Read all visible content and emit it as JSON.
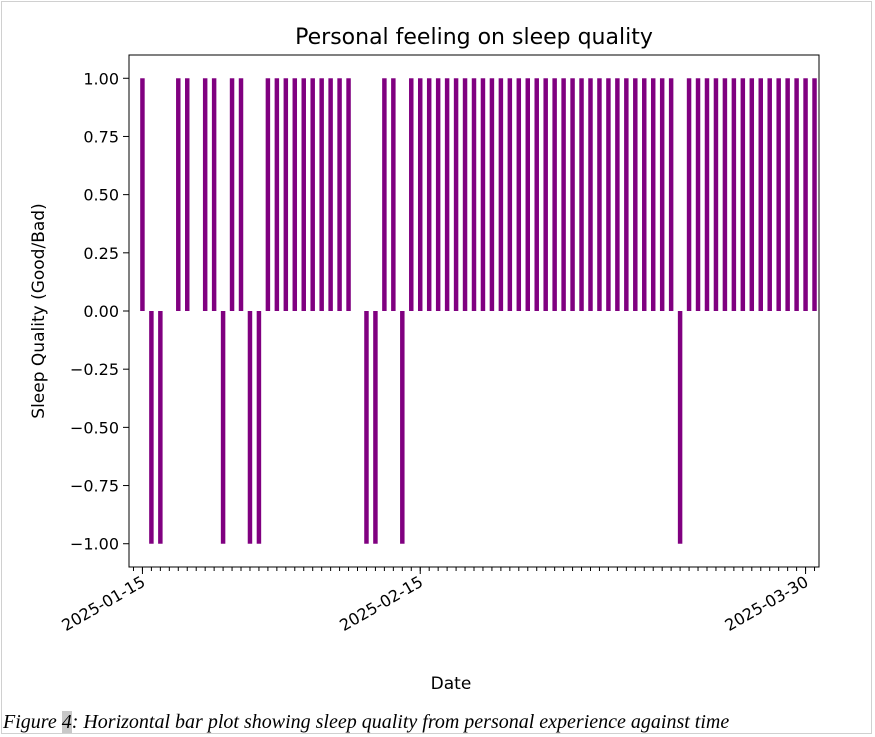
{
  "caption": {
    "prefix": "Figure ",
    "number": "4",
    "text": ": Horizontal bar plot showing sleep quality from personal experience against time"
  },
  "chart_data": {
    "type": "bar",
    "title": "Personal feeling on sleep quality",
    "xlabel": "Date",
    "ylabel": "Sleep Quality (Good/Bad)",
    "bar_color": "#800080",
    "grid": false,
    "legend": "none",
    "x_range": [
      "2025-01-14",
      "2025-03-31"
    ],
    "ylim": [
      -1.1,
      1.1
    ],
    "y_ticks": [
      {
        "value": 1.0,
        "label": "1.00"
      },
      {
        "value": 0.75,
        "label": "0.75"
      },
      {
        "value": 0.5,
        "label": "0.50"
      },
      {
        "value": 0.25,
        "label": "0.25"
      },
      {
        "value": 0.0,
        "label": "0.00"
      },
      {
        "value": -0.25,
        "label": "−0.25"
      },
      {
        "value": -0.5,
        "label": "−0.50"
      },
      {
        "value": -0.75,
        "label": "−0.75"
      },
      {
        "value": -1.0,
        "label": "−1.00"
      }
    ],
    "x_tick_labels": [
      {
        "date": "2025-01-15",
        "label": "2025-01-15"
      },
      {
        "date": "2025-02-15",
        "label": "2025-02-15"
      },
      {
        "date": "2025-03-30",
        "label": "2025-03-30"
      }
    ],
    "x_minor_ticks": "daily",
    "points": [
      {
        "date": "2025-01-15",
        "value": 1
      },
      {
        "date": "2025-01-16",
        "value": -1
      },
      {
        "date": "2025-01-17",
        "value": -1
      },
      {
        "date": "2025-01-19",
        "value": 1
      },
      {
        "date": "2025-01-20",
        "value": 1
      },
      {
        "date": "2025-01-22",
        "value": 1
      },
      {
        "date": "2025-01-23",
        "value": 1
      },
      {
        "date": "2025-01-24",
        "value": -1
      },
      {
        "date": "2025-01-25",
        "value": 1
      },
      {
        "date": "2025-01-26",
        "value": 1
      },
      {
        "date": "2025-01-27",
        "value": -1
      },
      {
        "date": "2025-01-28",
        "value": -1
      },
      {
        "date": "2025-01-29",
        "value": 1
      },
      {
        "date": "2025-01-30",
        "value": 1
      },
      {
        "date": "2025-01-31",
        "value": 1
      },
      {
        "date": "2025-02-01",
        "value": 1
      },
      {
        "date": "2025-02-02",
        "value": 1
      },
      {
        "date": "2025-02-03",
        "value": 1
      },
      {
        "date": "2025-02-04",
        "value": 1
      },
      {
        "date": "2025-02-05",
        "value": 1
      },
      {
        "date": "2025-02-06",
        "value": 1
      },
      {
        "date": "2025-02-07",
        "value": 1
      },
      {
        "date": "2025-02-09",
        "value": -1
      },
      {
        "date": "2025-02-10",
        "value": -1
      },
      {
        "date": "2025-02-11",
        "value": 1
      },
      {
        "date": "2025-02-12",
        "value": 1
      },
      {
        "date": "2025-02-13",
        "value": -1
      },
      {
        "date": "2025-02-14",
        "value": 1
      },
      {
        "date": "2025-02-15",
        "value": 1
      },
      {
        "date": "2025-02-16",
        "value": 1
      },
      {
        "date": "2025-02-17",
        "value": 1
      },
      {
        "date": "2025-02-18",
        "value": 1
      },
      {
        "date": "2025-02-19",
        "value": 1
      },
      {
        "date": "2025-02-20",
        "value": 1
      },
      {
        "date": "2025-02-21",
        "value": 1
      },
      {
        "date": "2025-02-22",
        "value": 1
      },
      {
        "date": "2025-02-23",
        "value": 1
      },
      {
        "date": "2025-02-24",
        "value": 1
      },
      {
        "date": "2025-02-25",
        "value": 1
      },
      {
        "date": "2025-02-26",
        "value": 1
      },
      {
        "date": "2025-02-27",
        "value": 1
      },
      {
        "date": "2025-02-28",
        "value": 1
      },
      {
        "date": "2025-03-01",
        "value": 1
      },
      {
        "date": "2025-03-02",
        "value": 1
      },
      {
        "date": "2025-03-03",
        "value": 1
      },
      {
        "date": "2025-03-04",
        "value": 1
      },
      {
        "date": "2025-03-05",
        "value": 1
      },
      {
        "date": "2025-03-06",
        "value": 1
      },
      {
        "date": "2025-03-07",
        "value": 1
      },
      {
        "date": "2025-03-08",
        "value": 1
      },
      {
        "date": "2025-03-09",
        "value": 1
      },
      {
        "date": "2025-03-10",
        "value": 1
      },
      {
        "date": "2025-03-11",
        "value": 1
      },
      {
        "date": "2025-03-12",
        "value": 1
      },
      {
        "date": "2025-03-13",
        "value": 1
      },
      {
        "date": "2025-03-14",
        "value": 1
      },
      {
        "date": "2025-03-15",
        "value": 1
      },
      {
        "date": "2025-03-16",
        "value": -1
      },
      {
        "date": "2025-03-17",
        "value": 1
      },
      {
        "date": "2025-03-18",
        "value": 1
      },
      {
        "date": "2025-03-19",
        "value": 1
      },
      {
        "date": "2025-03-20",
        "value": 1
      },
      {
        "date": "2025-03-21",
        "value": 1
      },
      {
        "date": "2025-03-22",
        "value": 1
      },
      {
        "date": "2025-03-23",
        "value": 1
      },
      {
        "date": "2025-03-24",
        "value": 1
      },
      {
        "date": "2025-03-25",
        "value": 1
      },
      {
        "date": "2025-03-26",
        "value": 1
      },
      {
        "date": "2025-03-27",
        "value": 1
      },
      {
        "date": "2025-03-28",
        "value": 1
      },
      {
        "date": "2025-03-29",
        "value": 1
      },
      {
        "date": "2025-03-30",
        "value": 1
      },
      {
        "date": "2025-03-31",
        "value": 1
      }
    ]
  }
}
